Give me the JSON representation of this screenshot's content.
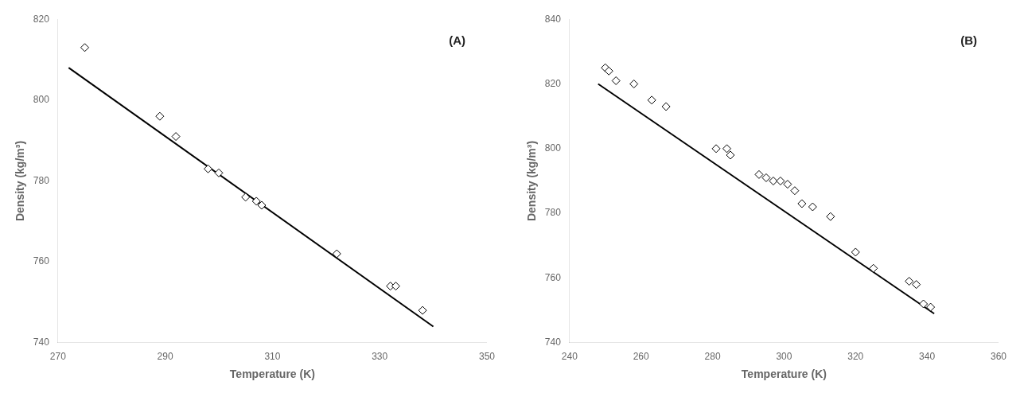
{
  "chart_data": [
    {
      "type": "scatter",
      "annotation": "(A)",
      "xlabel": "Temperature (K)",
      "ylabel": "Density (kg/m³)",
      "xlim": [
        270,
        350
      ],
      "ylim": [
        740,
        820
      ],
      "xticks": [
        270,
        290,
        310,
        330,
        350
      ],
      "yticks": [
        740,
        760,
        780,
        800,
        820
      ],
      "grid": false,
      "series": [
        {
          "type": "line",
          "color": "black",
          "line_style": "solid",
          "x": [
            272,
            340
          ],
          "values": [
            808,
            744
          ]
        },
        {
          "type": "scatter",
          "color": "black",
          "marker": "diamond-open",
          "x": [
            275,
            289,
            292,
            298,
            300,
            305,
            307,
            308,
            322,
            332,
            333,
            338
          ],
          "values": [
            813,
            796,
            791,
            783,
            782,
            776,
            775,
            774,
            762,
            754,
            754,
            748
          ]
        }
      ]
    },
    {
      "type": "scatter",
      "annotation": "(B)",
      "xlabel": "Temperature (K)",
      "ylabel": "Density (kg/m³)",
      "xlim": [
        240,
        360
      ],
      "ylim": [
        740,
        840
      ],
      "xticks": [
        240,
        260,
        280,
        300,
        320,
        340,
        360
      ],
      "yticks": [
        740,
        760,
        780,
        800,
        820,
        840
      ],
      "grid": false,
      "series": [
        {
          "type": "line",
          "color": "black",
          "line_style": "solid",
          "x": [
            248,
            342
          ],
          "values": [
            820,
            749
          ]
        },
        {
          "type": "scatter",
          "color": "black",
          "marker": "diamond-open",
          "x": [
            250,
            251,
            253,
            258,
            263,
            267,
            281,
            284,
            285,
            293,
            295,
            297,
            299,
            301,
            303,
            305,
            308,
            313,
            320,
            325,
            335,
            337,
            339,
            341
          ],
          "values": [
            825,
            824,
            821,
            820,
            815,
            813,
            800,
            800,
            798,
            792,
            791,
            790,
            790,
            789,
            787,
            783,
            782,
            779,
            768,
            763,
            759,
            758,
            752,
            751
          ]
        }
      ]
    }
  ]
}
